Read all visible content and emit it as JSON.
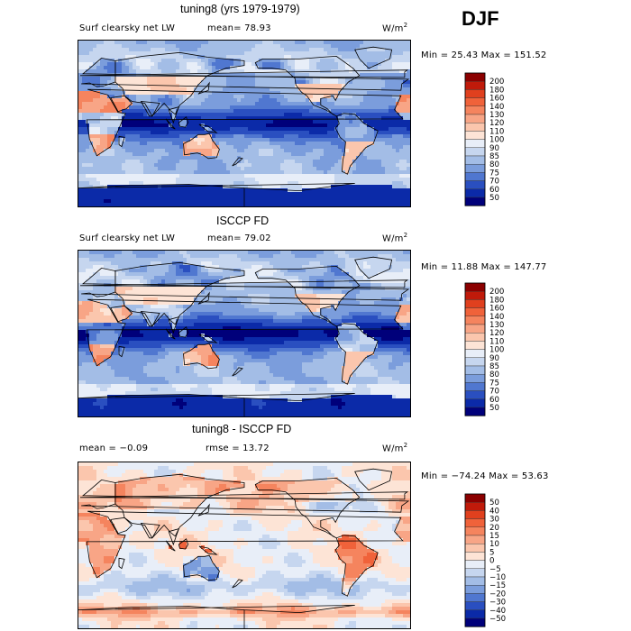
{
  "season": "DJF",
  "panels": [
    {
      "title": "tuning8 (yrs 1979-1979)",
      "variable": "Surf clearsky net LW",
      "stat_left": "mean=  78.93",
      "stat_mid": "",
      "units": "W/m",
      "units_sup": "2",
      "minmax": "Min =  25.43 Max = 151.52"
    },
    {
      "title": "ISCCP FD",
      "variable": "Surf clearsky net LW",
      "stat_left": "mean=  79.02",
      "stat_mid": "",
      "units": "W/m",
      "units_sup": "2",
      "minmax": "Min =  11.88 Max = 147.77"
    },
    {
      "title": "tuning8 - ISCCP FD",
      "variable": "",
      "stat_left": "mean =  −0.09",
      "stat_mid": "rmse =  13.72",
      "units": "W/m",
      "units_sup": "2",
      "minmax": "Min = −74.24 Max =  53.63"
    }
  ],
  "chart_data": [
    {
      "type": "heatmap",
      "title": "tuning8 (yrs 1979-1979)",
      "subtitle": "Surf clearsky net LW",
      "mean": 78.93,
      "min": 25.43,
      "max": 151.52,
      "units": "W/m2",
      "colorbar_levels": [
        "200",
        "180",
        "160",
        "140",
        "130",
        "120",
        "110",
        "100",
        "90",
        "85",
        "80",
        "75",
        "70",
        "60",
        "50"
      ],
      "colorbar_colors": [
        "#8b0000",
        "#c01a0a",
        "#e0401e",
        "#f0623a",
        "#f5845e",
        "#f8a586",
        "#fbc6ad",
        "#fde4d6",
        "#e8eef8",
        "#c6d6ef",
        "#a3bde6",
        "#7b9ddc",
        "#5077d0",
        "#2a4fc0",
        "#0b2aa8",
        "#00007a"
      ]
    },
    {
      "type": "heatmap",
      "title": "ISCCP FD",
      "subtitle": "Surf clearsky net LW",
      "mean": 79.02,
      "min": 11.88,
      "max": 147.77,
      "units": "W/m2",
      "colorbar_levels": [
        "200",
        "180",
        "160",
        "140",
        "130",
        "120",
        "110",
        "100",
        "90",
        "85",
        "80",
        "75",
        "70",
        "60",
        "50"
      ],
      "colorbar_colors": [
        "#8b0000",
        "#c01a0a",
        "#e0401e",
        "#f0623a",
        "#f5845e",
        "#f8a586",
        "#fbc6ad",
        "#fde4d6",
        "#e8eef8",
        "#c6d6ef",
        "#a3bde6",
        "#7b9ddc",
        "#5077d0",
        "#2a4fc0",
        "#0b2aa8",
        "#00007a"
      ]
    },
    {
      "type": "heatmap",
      "title": "tuning8 - ISCCP FD",
      "mean": -0.09,
      "rmse": 13.72,
      "min": -74.24,
      "max": 53.63,
      "units": "W/m2",
      "colorbar_levels": [
        "50",
        "40",
        "30",
        "20",
        "15",
        "10",
        "5",
        "0",
        "−5",
        "−10",
        "−15",
        "−20",
        "−30",
        "−40",
        "−50"
      ],
      "colorbar_colors": [
        "#8b0000",
        "#c01a0a",
        "#e0401e",
        "#f0623a",
        "#f5845e",
        "#f8a586",
        "#fbc6ad",
        "#fde4d6",
        "#e8eef8",
        "#c6d6ef",
        "#a3bde6",
        "#7b9ddc",
        "#5077d0",
        "#2a4fc0",
        "#0b2aa8",
        "#00007a"
      ]
    }
  ]
}
